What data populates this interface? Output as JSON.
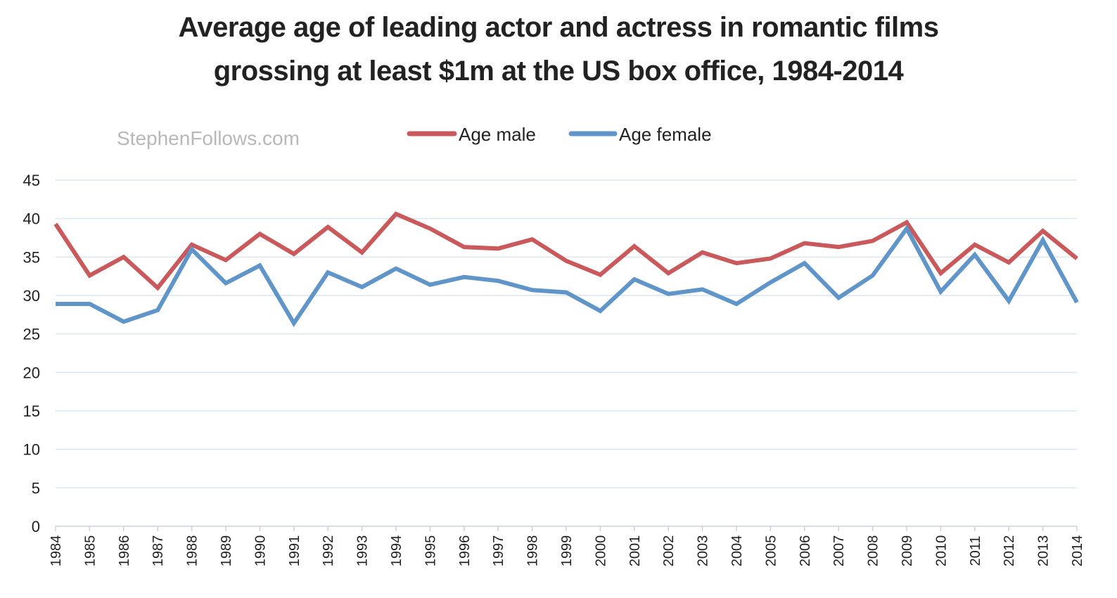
{
  "chart_data": {
    "type": "line",
    "title_lines": [
      "Average age of leading actor and actress in romantic films",
      "grossing at least $1m at the US box office, 1984-2014"
    ],
    "watermark": "StephenFollows.com",
    "x": [
      "1984",
      "1985",
      "1986",
      "1987",
      "1988",
      "1989",
      "1990",
      "1991",
      "1992",
      "1993",
      "1994",
      "1995",
      "1996",
      "1997",
      "1998",
      "1999",
      "2000",
      "2001",
      "2002",
      "2003",
      "2004",
      "2005",
      "2006",
      "2007",
      "2008",
      "2009",
      "2010",
      "2011",
      "2012",
      "2013",
      "2014"
    ],
    "y_ticks": [
      "0",
      "5",
      "10",
      "15",
      "20",
      "25",
      "30",
      "35",
      "40",
      "45"
    ],
    "ylim": [
      0,
      45
    ],
    "grid": true,
    "legend_position": "top",
    "series": [
      {
        "name": "Age male",
        "color": "#c9595a",
        "values": [
          39.3,
          32.6,
          35.0,
          31.0,
          36.6,
          34.6,
          38.0,
          35.4,
          38.9,
          35.6,
          40.6,
          38.7,
          36.3,
          36.1,
          37.3,
          34.5,
          32.7,
          36.4,
          32.9,
          35.6,
          34.2,
          34.8,
          36.8,
          36.3,
          37.1,
          39.5,
          32.9,
          36.6,
          34.3,
          38.4,
          34.8
        ]
      },
      {
        "name": "Age female",
        "color": "#5f95c8",
        "values": [
          28.9,
          28.9,
          26.6,
          28.1,
          36.0,
          31.6,
          33.9,
          26.4,
          33.0,
          31.1,
          33.5,
          31.4,
          32.4,
          31.9,
          30.7,
          30.4,
          28.0,
          32.1,
          30.2,
          30.8,
          28.9,
          31.7,
          34.2,
          29.7,
          32.6,
          38.7,
          30.5,
          35.3,
          29.3,
          37.2,
          29.1
        ]
      }
    ]
  }
}
